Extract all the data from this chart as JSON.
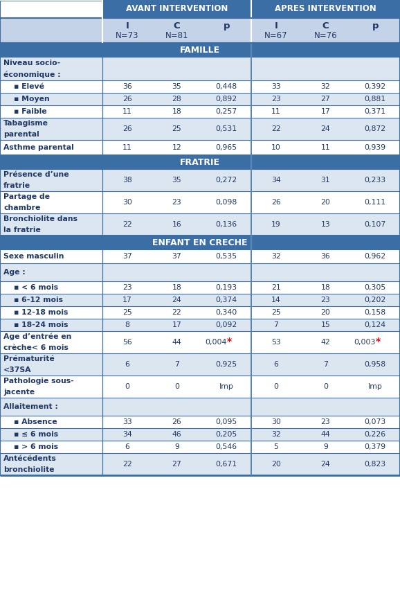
{
  "header_bg": "#3B6EA5",
  "header_text": "#FFFFFF",
  "subheader_bg": "#C5D3E8",
  "subheader_text": "#1F3864",
  "section_bg": "#3B6EA5",
  "section_text": "#FFFFFF",
  "row_bg_light": "#DCE6F1",
  "row_bg_white": "#FFFFFF",
  "border_color": "#3B6EA5",
  "cell_text_color": "#1F3864",
  "title_avant": "AVANT INTERVENTION",
  "title_apres": "APRES INTERVENTION",
  "col_headers": [
    "I",
    "C",
    "p",
    "I",
    "C",
    "p"
  ],
  "col_subheaders": [
    "N=73",
    "N=81",
    "",
    "N=67",
    "N=76",
    ""
  ],
  "sections": [
    {
      "name": "FAMILLE",
      "rows": [
        {
          "label": "Niveau socio-\néconomique :",
          "values": [
            "",
            "",
            "",
            "",
            "",
            ""
          ],
          "rh": 34
        },
        {
          "label": "    ▪ Elevé",
          "values": [
            "36",
            "35",
            "0,448",
            "33",
            "32",
            "0,392"
          ],
          "rh": 18
        },
        {
          "label": "    ▪ Moyen",
          "values": [
            "26",
            "28",
            "0,892",
            "23",
            "27",
            "0,881"
          ],
          "rh": 18
        },
        {
          "label": "    ▪ Faible",
          "values": [
            "11",
            "18",
            "0,257",
            "11",
            "17",
            "0,371"
          ],
          "rh": 18
        },
        {
          "label": "Tabagisme\nparental",
          "values": [
            "26",
            "25",
            "0,531",
            "22",
            "24",
            "0,872"
          ],
          "rh": 32
        },
        {
          "label": "Asthme parental",
          "values": [
            "11",
            "12",
            "0,965",
            "10",
            "11",
            "0,939"
          ],
          "rh": 22
        }
      ]
    },
    {
      "name": "FRATRIE",
      "rows": [
        {
          "label": "Présence d’une\nfratrie",
          "values": [
            "38",
            "35",
            "0,272",
            "34",
            "31",
            "0,233"
          ],
          "rh": 32
        },
        {
          "label": "Partage de\nchambre",
          "values": [
            "30",
            "23",
            "0,098",
            "26",
            "20",
            "0,111"
          ],
          "rh": 32
        },
        {
          "label": "Bronchiolite dans\nla fratrie",
          "values": [
            "22",
            "16",
            "0,136",
            "19",
            "13",
            "0,107"
          ],
          "rh": 32
        }
      ]
    },
    {
      "name": "ENFANT EN CRECHE",
      "rows": [
        {
          "label": "Sexe masculin",
          "values": [
            "37",
            "37",
            "0,535",
            "32",
            "36",
            "0,962"
          ],
          "rh": 20
        },
        {
          "label": "Age :\n    ▪ < 6 mois\n    ▪ 6-12 mois\n    ▪ 12-18 mois\n    ▪ 18-24 mois",
          "values": [
            "",
            "",
            "",
            "",
            "",
            ""
          ],
          "rh": 0,
          "multirow": true
        },
        {
          "label": "    ▪ < 6 mois",
          "values": [
            "23",
            "18",
            "0,193",
            "21",
            "18",
            "0,305"
          ],
          "rh": 18
        },
        {
          "label": "    ▪ 6-12 mois",
          "values": [
            "17",
            "24",
            "0,374",
            "14",
            "23",
            "0,202"
          ],
          "rh": 18
        },
        {
          "label": "    ▪ 12-18 mois",
          "values": [
            "25",
            "22",
            "0,340",
            "25",
            "20",
            "0,158"
          ],
          "rh": 18
        },
        {
          "label": "    ▪ 18-24 mois",
          "values": [
            "8",
            "17",
            "0,092",
            "7",
            "15",
            "0,124"
          ],
          "rh": 18
        },
        {
          "label": "Age d’entrée en\ncrèche< 6 mois",
          "values": [
            "56",
            "44",
            "0,004*",
            "53",
            "42",
            "0,003*"
          ],
          "rh": 32
        },
        {
          "label": "Prématurité\n<37SA",
          "values": [
            "6",
            "7",
            "0,925",
            "6",
            "7",
            "0,958"
          ],
          "rh": 32
        },
        {
          "label": "Pathologie sous-\njacente",
          "values": [
            "0",
            "0",
            "Imp",
            "0",
            "0",
            "Imp"
          ],
          "rh": 32
        },
        {
          "label": "Allaitement :\n    ▪ Absence\n    ▪ ≤ 6 mois\n    ▪ > 6 mois",
          "values": [
            "",
            "",
            "",
            "",
            "",
            ""
          ],
          "rh": 0,
          "multirow": true
        },
        {
          "label": "    ▪ Absence",
          "values": [
            "33",
            "26",
            "0,095",
            "30",
            "23",
            "0,073"
          ],
          "rh": 18
        },
        {
          "label": "    ▪ ≤ 6 mois",
          "values": [
            "34",
            "46",
            "0,205",
            "32",
            "44",
            "0,226"
          ],
          "rh": 18
        },
        {
          "label": "    ▪ > 6 mois",
          "values": [
            "6",
            "9",
            "0,546",
            "5",
            "9",
            "0,379"
          ],
          "rh": 18
        },
        {
          "label": "Antécédents\nbronchiolite",
          "values": [
            "22",
            "27",
            "0,671",
            "20",
            "24",
            "0,823"
          ],
          "rh": 32
        }
      ]
    }
  ]
}
